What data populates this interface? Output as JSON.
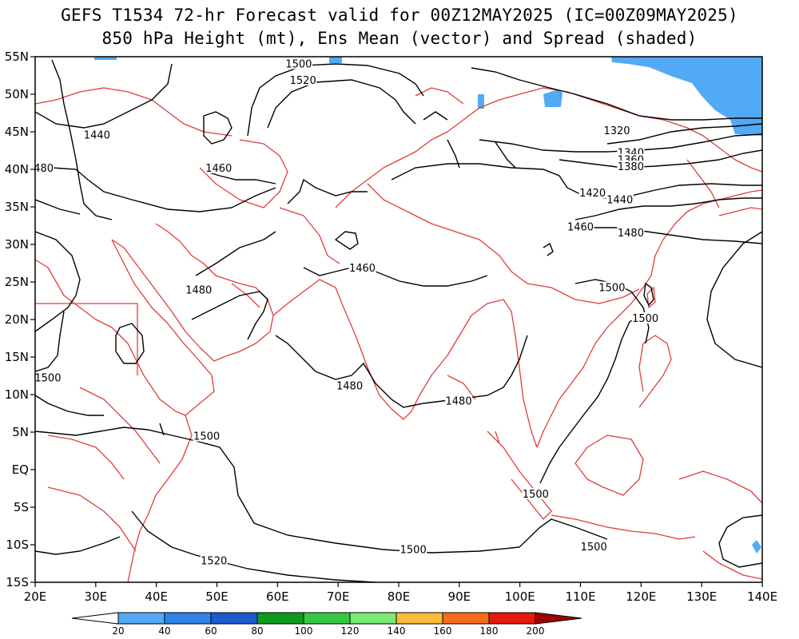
{
  "title": {
    "line1": "GEFS T1534 72-hr Forecast valid for 00Z12MAY2025 (IC=00Z09MAY2025)",
    "line2": "850 hPa Height (mt), Ens Mean (vector) and Spread (shaded)"
  },
  "map": {
    "lon_range": [
      20,
      140
    ],
    "lat_range": [
      -15,
      55
    ],
    "lon_ticks": [
      "20E",
      "30E",
      "40E",
      "50E",
      "60E",
      "70E",
      "80E",
      "90E",
      "100E",
      "110E",
      "120E",
      "130E",
      "140E"
    ],
    "lat_ticks": [
      "55N",
      "50N",
      "45N",
      "40N",
      "35N",
      "30N",
      "25N",
      "20N",
      "15N",
      "10N",
      "5N",
      "EQ",
      "5S",
      "10S",
      "15S"
    ],
    "coastline_color": "#e03c3c",
    "contour_color": "#000000",
    "contour_labels": [
      {
        "text": "1500",
        "lon": 63.5,
        "lat": 53.9
      },
      {
        "text": "1520",
        "lon": 64.2,
        "lat": 51.7
      },
      {
        "text": "1440",
        "lon": 30.2,
        "lat": 44.4
      },
      {
        "text": "1460",
        "lon": 50.3,
        "lat": 40.0
      },
      {
        "text": "480",
        "lon": 21.4,
        "lat": 40.0
      },
      {
        "text": "1320",
        "lon": 116.0,
        "lat": 45.0
      },
      {
        "text": "1340",
        "lon": 118.3,
        "lat": 42.1
      },
      {
        "text": "1360",
        "lon": 118.3,
        "lat": 41.1
      },
      {
        "text": "1380",
        "lon": 118.3,
        "lat": 40.2
      },
      {
        "text": "1420",
        "lon": 112.0,
        "lat": 36.7
      },
      {
        "text": "1440",
        "lon": 116.5,
        "lat": 35.8
      },
      {
        "text": "1460",
        "lon": 110.0,
        "lat": 32.2
      },
      {
        "text": "1480",
        "lon": 118.3,
        "lat": 31.4
      },
      {
        "text": "1460",
        "lon": 74.0,
        "lat": 26.7
      },
      {
        "text": "1480",
        "lon": 47.0,
        "lat": 23.8
      },
      {
        "text": "1500",
        "lon": 115.2,
        "lat": 24.1
      },
      {
        "text": "1500",
        "lon": 120.7,
        "lat": 20.0
      },
      {
        "text": "1500",
        "lon": 22.1,
        "lat": 12.1
      },
      {
        "text": "1480",
        "lon": 71.9,
        "lat": 11.0
      },
      {
        "text": "1480",
        "lon": 89.9,
        "lat": 9.0
      },
      {
        "text": "1500",
        "lon": 48.3,
        "lat": 4.3
      },
      {
        "text": "1500",
        "lon": 102.6,
        "lat": -3.4
      },
      {
        "text": "1500",
        "lon": 82.4,
        "lat": -10.8
      },
      {
        "text": "1500",
        "lon": 112.2,
        "lat": -10.4
      },
      {
        "text": "1520",
        "lon": 49.5,
        "lat": -12.3
      }
    ]
  },
  "colorbar": {
    "labels": [
      "20",
      "40",
      "60",
      "80",
      "100",
      "120",
      "140",
      "160",
      "180",
      "200"
    ],
    "colors": [
      "#52a9f5",
      "#2f84e6",
      "#1a5cd0",
      "#0f9a1f",
      "#37c843",
      "#78ec74",
      "#f6bc3a",
      "#f76b1a",
      "#e5170e",
      "#a00000"
    ]
  }
}
